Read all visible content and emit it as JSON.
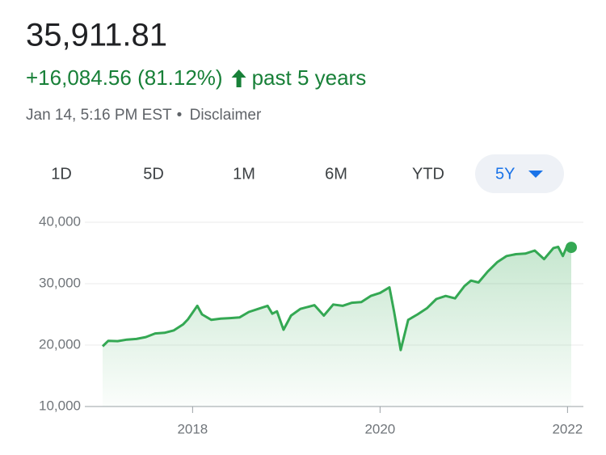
{
  "header": {
    "price": "35,911.81",
    "change": "+16,084.56 (81.12%)",
    "period": "past 5 years",
    "timestamp": "Jan 14, 5:16 PM EST",
    "separator": "•",
    "disclaimer": "Disclaimer"
  },
  "tabs": [
    "1D",
    "5D",
    "1M",
    "6M",
    "YTD",
    "5Y"
  ],
  "selected_tab": 5,
  "chart_data": {
    "type": "line",
    "color": "#34a853",
    "x": [
      2017.04,
      2017.1,
      2017.2,
      2017.3,
      2017.4,
      2017.5,
      2017.6,
      2017.7,
      2017.8,
      2017.9,
      2017.95,
      2018.05,
      2018.1,
      2018.2,
      2018.3,
      2018.4,
      2018.5,
      2018.6,
      2018.7,
      2018.8,
      2018.85,
      2018.9,
      2018.97,
      2019.05,
      2019.15,
      2019.3,
      2019.4,
      2019.5,
      2019.6,
      2019.7,
      2019.8,
      2019.9,
      2020.0,
      2020.1,
      2020.15,
      2020.22,
      2020.3,
      2020.4,
      2020.5,
      2020.6,
      2020.7,
      2020.8,
      2020.9,
      2020.97,
      2021.05,
      2021.15,
      2021.25,
      2021.35,
      2021.45,
      2021.55,
      2021.65,
      2021.75,
      2021.85,
      2021.9,
      2021.95,
      2022.0,
      2022.04
    ],
    "values": [
      19800,
      20700,
      20650,
      20900,
      21000,
      21300,
      21900,
      22000,
      22400,
      23400,
      24200,
      26400,
      25000,
      24100,
      24300,
      24400,
      24500,
      25400,
      25900,
      26400,
      25100,
      25500,
      22500,
      24800,
      25900,
      26500,
      24800,
      26600,
      26400,
      26900,
      27000,
      28000,
      28500,
      29400,
      25400,
      19200,
      24100,
      25000,
      26000,
      27500,
      28000,
      27600,
      29600,
      30500,
      30200,
      32000,
      33500,
      34500,
      34800,
      34900,
      35400,
      34000,
      35800,
      36000,
      34500,
      36300,
      35912
    ],
    "xlim": [
      2017.04,
      2022.04
    ],
    "ylim": [
      10000,
      40000
    ],
    "xticks": [
      2018,
      2020,
      2022
    ],
    "yticks": [
      {
        "value": 10000,
        "label": "10,000"
      },
      {
        "value": 20000,
        "label": "20,000"
      },
      {
        "value": 30000,
        "label": "30,000"
      },
      {
        "value": 40000,
        "label": "40,000"
      }
    ],
    "grid": true
  }
}
